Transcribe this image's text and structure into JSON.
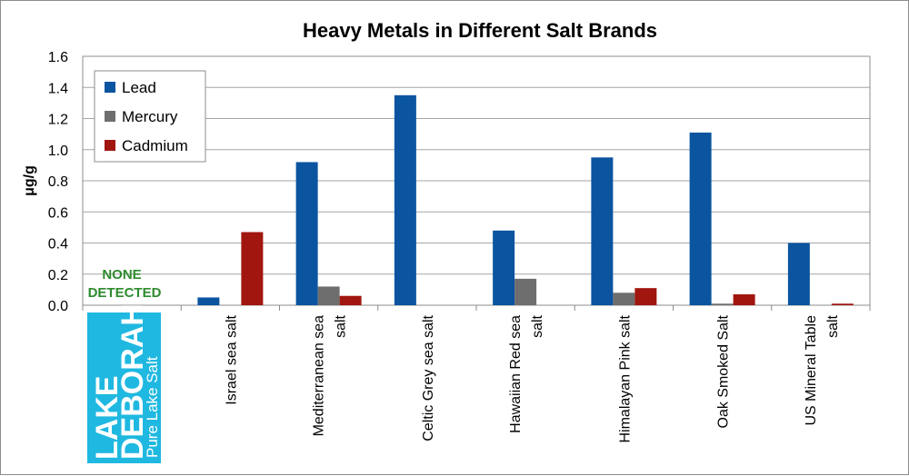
{
  "chart_data": {
    "type": "bar",
    "title": "Heavy Metals in Different Salt Brands",
    "ylabel": "μg/g",
    "xlabel": "",
    "ylim": [
      0,
      1.6
    ],
    "yticks": [
      "0.0",
      "0.2",
      "0.4",
      "0.6",
      "0.8",
      "1.0",
      "1.2",
      "1.4",
      "1.6"
    ],
    "grid": true,
    "legend_position": "top-left",
    "categories": [
      [
        "LAKE DEBORAH",
        "Pure Lake Salt"
      ],
      [
        "Israel sea salt"
      ],
      [
        "Mediterranean sea",
        "salt"
      ],
      [
        "Celtic Grey sea salt"
      ],
      [
        "Hawaiian Red sea",
        "salt"
      ],
      [
        "Himalayan Pink salt"
      ],
      [
        "Oak Smoked Salt"
      ],
      [
        "US Mineral Table",
        "salt"
      ]
    ],
    "series": [
      {
        "name": "Lead",
        "color": "#0b54a0",
        "values": [
          0,
          0.05,
          0.92,
          1.35,
          0.48,
          0.95,
          1.11,
          0.4
        ]
      },
      {
        "name": "Mercury",
        "color": "#6e6e6e",
        "values": [
          0,
          0,
          0.12,
          0,
          0.17,
          0.08,
          0.01,
          0
        ]
      },
      {
        "name": "Cadmium",
        "color": "#a1160f",
        "values": [
          0,
          0.47,
          0.06,
          0,
          0,
          0.11,
          0.07,
          0.01
        ]
      }
    ],
    "annotation": [
      "NONE",
      "DETECTED"
    ],
    "logo_color": "#1fb8e0"
  }
}
